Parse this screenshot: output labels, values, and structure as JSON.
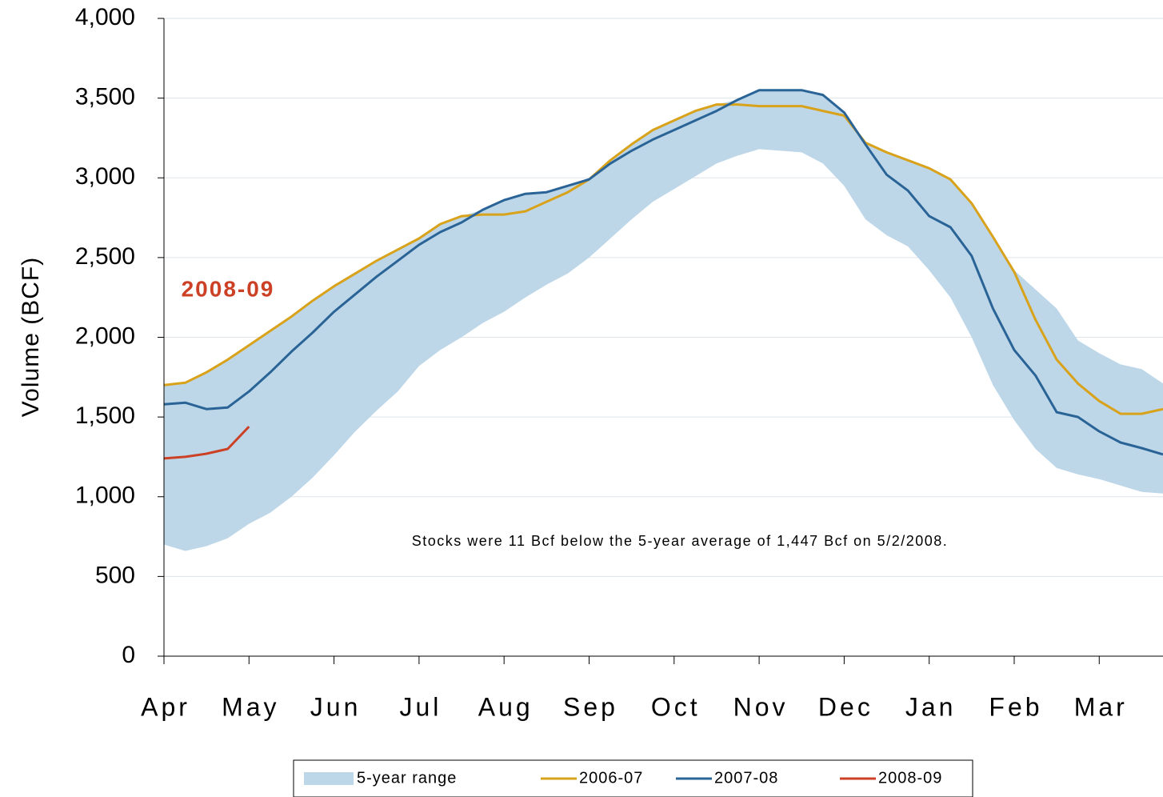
{
  "chart_data": {
    "type": "line",
    "ylabel": "Volume (BCF)",
    "annotations": [
      "2008-09",
      "Stocks were 11 Bcf below the 5-year average of 1,447 Bcf on 5/2/2008."
    ],
    "categories": [
      "Apr",
      null,
      null,
      null,
      "May",
      null,
      null,
      null,
      "Jun",
      null,
      null,
      null,
      "Jul",
      null,
      null,
      null,
      "Aug",
      null,
      null,
      null,
      "Sep",
      null,
      null,
      null,
      "Oct",
      null,
      null,
      null,
      "Nov",
      null,
      null,
      null,
      "Dec",
      null,
      null,
      null,
      "Jan",
      null,
      null,
      null,
      "Feb",
      null,
      null,
      null,
      "Mar",
      null,
      null,
      null
    ],
    "ylim": [
      0,
      4000
    ],
    "yticks": [
      0,
      500,
      {
        "value": 1000,
        "label": "1,000"
      },
      {
        "value": 1500,
        "label": "1,500"
      },
      {
        "value": 2000,
        "label": "2,000"
      },
      {
        "value": 2500,
        "label": "2,500"
      },
      {
        "value": 3000,
        "label": "3,000"
      },
      {
        "value": 3500,
        "label": "3,500"
      },
      {
        "value": 4000,
        "label": "4,000"
      }
    ],
    "grid": true,
    "series": [
      {
        "name": "5-year range",
        "color": "#bdd7e9",
        "high": [
          1700,
          1715,
          1780,
          1860,
          1950,
          2040,
          2130,
          2230,
          2320,
          2400,
          2480,
          2550,
          2620,
          2710,
          2760,
          2800,
          2860,
          2900,
          2910,
          2950,
          3000,
          3110,
          3210,
          3300,
          3360,
          3420,
          3460,
          3490,
          3550,
          3550,
          3550,
          3520,
          3410,
          3220,
          3160,
          3110,
          3060,
          2990,
          2840,
          2630,
          2420,
          2300,
          2180,
          1980,
          1900,
          1830,
          1800,
          1710
        ],
        "low": [
          700,
          660,
          690,
          740,
          830,
          900,
          1000,
          1120,
          1260,
          1410,
          1540,
          1660,
          1820,
          1920,
          2000,
          2090,
          2160,
          2250,
          2330,
          2400,
          2500,
          2620,
          2740,
          2850,
          2930,
          3010,
          3090,
          3140,
          3180,
          3170,
          3160,
          3090,
          2950,
          2740,
          2640,
          2570,
          2420,
          2250,
          2000,
          1700,
          1480,
          1300,
          1180,
          1140,
          1110,
          1070,
          1030,
          1020
        ]
      },
      {
        "name": "2006-07",
        "color": "#d9a21b",
        "values": [
          1700,
          1715,
          1780,
          1860,
          1950,
          2040,
          2130,
          2230,
          2320,
          2400,
          2480,
          2550,
          2620,
          2710,
          2760,
          2770,
          2770,
          2790,
          2850,
          2910,
          2990,
          3110,
          3210,
          3300,
          3360,
          3420,
          3460,
          3460,
          3450,
          3450,
          3450,
          3420,
          3390,
          3220,
          3160,
          3110,
          3060,
          2990,
          2840,
          2630,
          2410,
          2110,
          1860,
          1710,
          1600,
          1520,
          1520,
          1550
        ]
      },
      {
        "name": "2007-08",
        "color": "#2a6496",
        "values": [
          1580,
          1590,
          1550,
          1560,
          1660,
          1780,
          1910,
          2030,
          2160,
          2270,
          2380,
          2480,
          2580,
          2660,
          2720,
          2800,
          2860,
          2900,
          2910,
          2950,
          2990,
          3090,
          3170,
          3240,
          3300,
          3360,
          3420,
          3490,
          3550,
          3550,
          3550,
          3520,
          3410,
          3210,
          3020,
          2920,
          2760,
          2690,
          2510,
          2180,
          1920,
          1760,
          1530,
          1500,
          1410,
          1340,
          1305,
          1265
        ]
      },
      {
        "name": "2008-09",
        "color": "#cc4125",
        "values": [
          1240,
          1250,
          1270,
          1300,
          1440,
          null,
          null,
          null,
          null,
          null,
          null,
          null,
          null,
          null,
          null,
          null,
          null,
          null,
          null,
          null,
          null,
          null,
          null,
          null,
          null,
          null,
          null,
          null,
          null,
          null,
          null,
          null,
          null,
          null,
          null,
          null,
          null,
          null,
          null,
          null,
          null,
          null,
          null,
          null,
          null,
          null,
          null,
          null
        ]
      }
    ]
  }
}
